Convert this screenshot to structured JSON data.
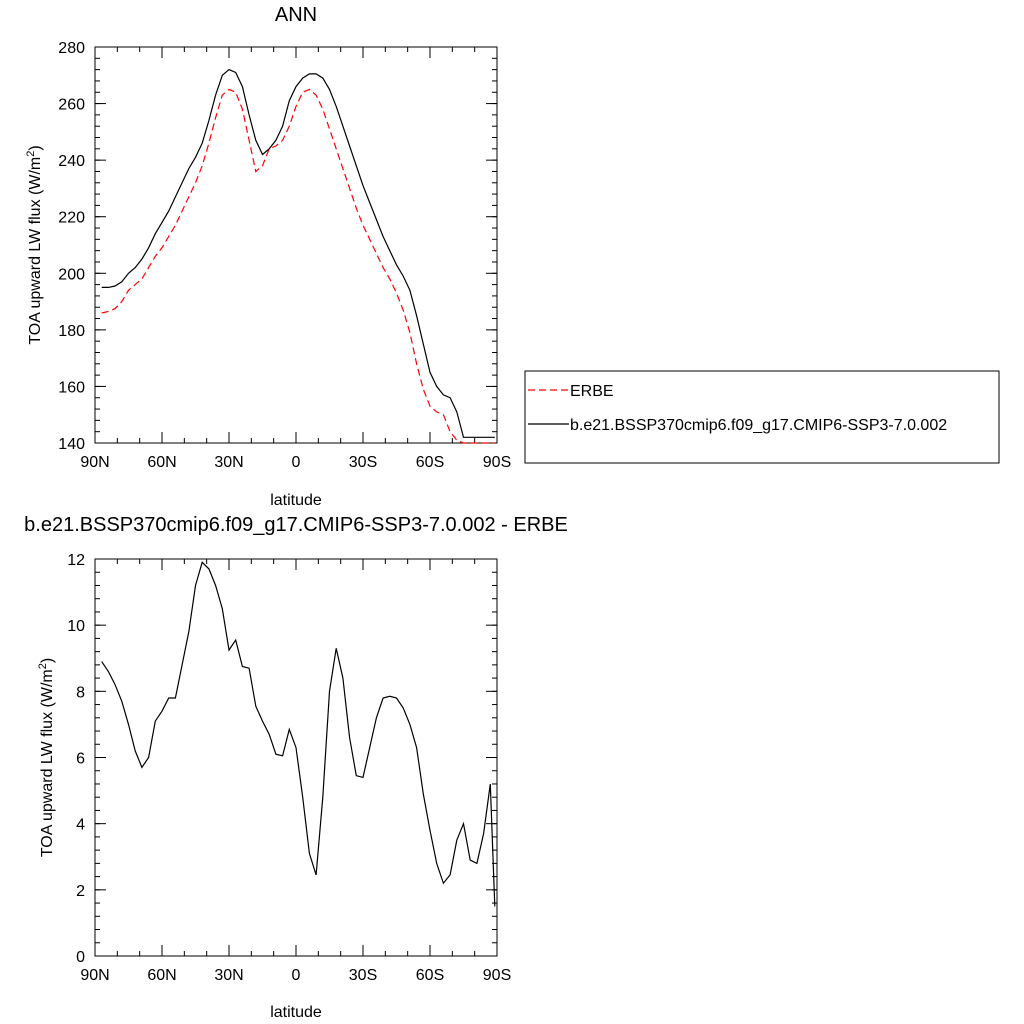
{
  "chart_data": [
    {
      "type": "line",
      "title": "ANN",
      "xlabel": "latitude",
      "ylabel": "TOA upward LW flux (W/m",
      "ylabel_sup": "2",
      "ylabel_end": ")",
      "xlim": [
        90,
        -90
      ],
      "ylim": [
        140,
        280
      ],
      "x_ticks": [
        {
          "value": 90,
          "label": "90N"
        },
        {
          "value": 60,
          "label": "60N"
        },
        {
          "value": 30,
          "label": "30N"
        },
        {
          "value": 0,
          "label": "0"
        },
        {
          "value": -30,
          "label": "30S"
        },
        {
          "value": -60,
          "label": "60S"
        },
        {
          "value": -90,
          "label": "90S"
        }
      ],
      "y_ticks": [
        140,
        160,
        180,
        200,
        220,
        240,
        260,
        280
      ],
      "legend_position": "right",
      "series": [
        {
          "name": "ERBE",
          "color": "#ff0000",
          "dash": "dashed",
          "x": [
            87,
            84,
            81,
            78,
            75,
            72,
            69,
            66,
            63,
            60,
            57,
            54,
            51,
            48,
            45,
            42,
            39,
            36,
            33,
            30,
            27,
            24,
            21,
            18,
            15,
            12,
            9,
            6,
            3,
            0,
            -3,
            -6,
            -9,
            -12,
            -15,
            -18,
            -21,
            -24,
            -27,
            -30,
            -33,
            -36,
            -39,
            -42,
            -45,
            -48,
            -51,
            -54,
            -57,
            -60,
            -63,
            -66,
            -69,
            -72,
            -75,
            -78,
            -81,
            -84,
            -87,
            -89
          ],
          "y": [
            186,
            186.5,
            187.5,
            190,
            194,
            196,
            198,
            202,
            206,
            209,
            213,
            217,
            222,
            227,
            232,
            238,
            246,
            255,
            263,
            265,
            264,
            258,
            247,
            236,
            238,
            244,
            245,
            247,
            252,
            259,
            264,
            265,
            263,
            258,
            251,
            244,
            237,
            230,
            223,
            217,
            212,
            207,
            202,
            198,
            193,
            187,
            179,
            168,
            159,
            153,
            151,
            150,
            144,
            141,
            140,
            140,
            140,
            140,
            140,
            140
          ]
        },
        {
          "name": "b.e21.BSSP370cmip6.f09_g17.CMIP6-SSP3-7.0.002",
          "color": "#000000",
          "dash": "solid",
          "x": [
            87,
            84,
            81,
            78,
            75,
            72,
            69,
            66,
            63,
            60,
            57,
            54,
            51,
            48,
            45,
            42,
            39,
            36,
            33,
            30,
            27,
            24,
            21,
            18,
            15,
            12,
            9,
            6,
            3,
            0,
            -3,
            -6,
            -9,
            -12,
            -15,
            -18,
            -21,
            -24,
            -27,
            -30,
            -33,
            -36,
            -39,
            -42,
            -45,
            -48,
            -51,
            -54,
            -57,
            -60,
            -63,
            -66,
            -69,
            -72,
            -75,
            -78,
            -81,
            -84,
            -87,
            -89
          ],
          "y": [
            195,
            195,
            195.5,
            197,
            200,
            202,
            205,
            209,
            214,
            218,
            222,
            227,
            232,
            237,
            241,
            246,
            254,
            263,
            270,
            272,
            271,
            266,
            256,
            247,
            242,
            244,
            247,
            252,
            261,
            266,
            269,
            270.5,
            270.5,
            269,
            265,
            259,
            252,
            245,
            238,
            231,
            225,
            219,
            213,
            208,
            203,
            199,
            194,
            185,
            175,
            165,
            160,
            157,
            156,
            151,
            142,
            142,
            142,
            142,
            142,
            142
          ]
        }
      ]
    },
    {
      "type": "line",
      "title": "b.e21.BSSP370cmip6.f09_g17.CMIP6-SSP3-7.0.002 - ERBE",
      "xlabel": "latitude",
      "ylabel": "TOA upward LW flux (W/m",
      "ylabel_sup": "2",
      "ylabel_end": ")",
      "xlim": [
        90,
        -90
      ],
      "ylim": [
        0,
        12
      ],
      "x_ticks": [
        {
          "value": 90,
          "label": "90N"
        },
        {
          "value": 60,
          "label": "60N"
        },
        {
          "value": 30,
          "label": "30N"
        },
        {
          "value": 0,
          "label": "0"
        },
        {
          "value": -30,
          "label": "30S"
        },
        {
          "value": -60,
          "label": "60S"
        },
        {
          "value": -90,
          "label": "90S"
        }
      ],
      "y_ticks": [
        0,
        2,
        4,
        6,
        8,
        10,
        12
      ],
      "series": [
        {
          "color": "#000000",
          "dash": "solid",
          "x": [
            87,
            84,
            81,
            78,
            75,
            72,
            69,
            66,
            63,
            60,
            57,
            54,
            51,
            48,
            45,
            42,
            39,
            36,
            33,
            30,
            27,
            24,
            21,
            18,
            15,
            12,
            9,
            6,
            3,
            0,
            -3,
            -6,
            -9,
            -12,
            -15,
            -18,
            -21,
            -24,
            -27,
            -30,
            -33,
            -36,
            -39,
            -42,
            -45,
            -48,
            -51,
            -54,
            -57,
            -60,
            -63,
            -66,
            -69,
            -72,
            -75,
            -78,
            -81,
            -84,
            -87,
            -89
          ],
          "y": [
            8.9,
            8.6,
            8.2,
            7.7,
            7.0,
            6.2,
            5.7,
            6.0,
            7.1,
            7.4,
            7.8,
            7.8,
            8.8,
            9.8,
            11.2,
            11.9,
            11.7,
            11.2,
            10.5,
            9.25,
            9.55,
            8.75,
            8.7,
            7.55,
            7.1,
            6.7,
            6.1,
            6.05,
            6.85,
            6.3,
            4.8,
            3.1,
            2.45,
            4.8,
            8.0,
            9.3,
            8.4,
            6.6,
            5.45,
            5.4,
            6.3,
            7.2,
            7.8,
            7.85,
            7.8,
            7.5,
            7.0,
            6.3,
            4.9,
            3.8,
            2.8,
            2.2,
            2.45,
            3.5,
            4.0,
            2.9,
            2.8,
            3.7,
            5.2,
            1.5
          ]
        }
      ]
    }
  ]
}
